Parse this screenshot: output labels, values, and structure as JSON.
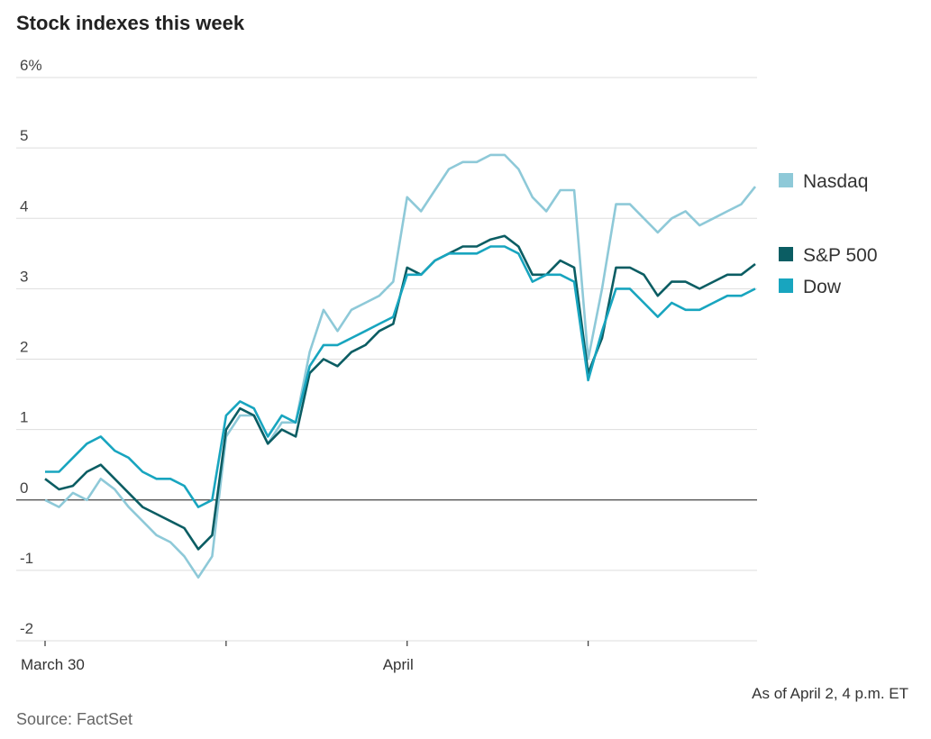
{
  "chart_data": {
    "type": "line",
    "title": "Stock indexes this week",
    "annotation": "As of April 2, 4 p.m. ET",
    "source": "Source: FactSet",
    "x": [
      0,
      1,
      2,
      3,
      4,
      5,
      6,
      7,
      8,
      9,
      10,
      11,
      12,
      13,
      14,
      15,
      16,
      17,
      18,
      19,
      20,
      21,
      22,
      23,
      24,
      25,
      26,
      27,
      28,
      29,
      30,
      31,
      32,
      33,
      34,
      35,
      36,
      37,
      38,
      39,
      40,
      41,
      42,
      43,
      44,
      45,
      46,
      47,
      48,
      49,
      50,
      51
    ],
    "xlim": [
      0,
      51
    ],
    "xticks": [
      {
        "value": 0,
        "label": "March 30"
      },
      {
        "value": 13,
        "label": null
      },
      {
        "value": 26,
        "label": "April"
      },
      {
        "value": 39,
        "label": null
      }
    ],
    "ylim": [
      -2,
      6
    ],
    "yticks": [
      -2,
      -1,
      0,
      1,
      2,
      3,
      4,
      5,
      {
        "value": 6,
        "label": "6%"
      }
    ],
    "grid": true,
    "series": [
      {
        "name": "Nasdaq",
        "color": "#8ec9d8",
        "values": [
          0,
          -0.1,
          0.1,
          0,
          0.3,
          0.15,
          -0.1,
          -0.3,
          -0.5,
          -0.6,
          -0.8,
          -1.1,
          -0.8,
          0.9,
          1.2,
          1.2,
          0.8,
          1.1,
          1.1,
          2.1,
          2.7,
          2.4,
          2.7,
          2.8,
          2.9,
          3.1,
          4.3,
          4.1,
          4.4,
          4.7,
          4.8,
          4.8,
          4.9,
          4.9,
          4.7,
          4.3,
          4.1,
          4.4,
          4.4,
          2.0,
          3.0,
          4.2,
          4.2,
          4.0,
          3.8,
          4.0,
          4.1,
          3.9,
          4.0,
          4.1,
          4.2,
          4.45
        ]
      },
      {
        "name": "S&P 500",
        "color": "#0b5d63",
        "values": [
          0.3,
          0.15,
          0.2,
          0.4,
          0.5,
          0.3,
          0.1,
          -0.1,
          -0.2,
          -0.3,
          -0.4,
          -0.7,
          -0.5,
          1.0,
          1.3,
          1.2,
          0.8,
          1.0,
          0.9,
          1.8,
          2.0,
          1.9,
          2.1,
          2.2,
          2.4,
          2.5,
          3.3,
          3.2,
          3.4,
          3.5,
          3.6,
          3.6,
          3.7,
          3.75,
          3.6,
          3.2,
          3.2,
          3.4,
          3.3,
          1.8,
          2.3,
          3.3,
          3.3,
          3.2,
          2.9,
          3.1,
          3.1,
          3.0,
          3.1,
          3.2,
          3.2,
          3.35
        ]
      },
      {
        "name": "Dow",
        "color": "#18a5bf",
        "values": [
          0.4,
          0.4,
          0.6,
          0.8,
          0.9,
          0.7,
          0.6,
          0.4,
          0.3,
          0.3,
          0.2,
          -0.1,
          0.0,
          1.2,
          1.4,
          1.3,
          0.9,
          1.2,
          1.1,
          1.9,
          2.2,
          2.2,
          2.3,
          2.4,
          2.5,
          2.6,
          3.2,
          3.2,
          3.4,
          3.5,
          3.5,
          3.5,
          3.6,
          3.6,
          3.5,
          3.1,
          3.2,
          3.2,
          3.1,
          1.7,
          2.4,
          3.0,
          3.0,
          2.8,
          2.6,
          2.8,
          2.7,
          2.7,
          2.8,
          2.9,
          2.9,
          3.0
        ]
      }
    ]
  }
}
